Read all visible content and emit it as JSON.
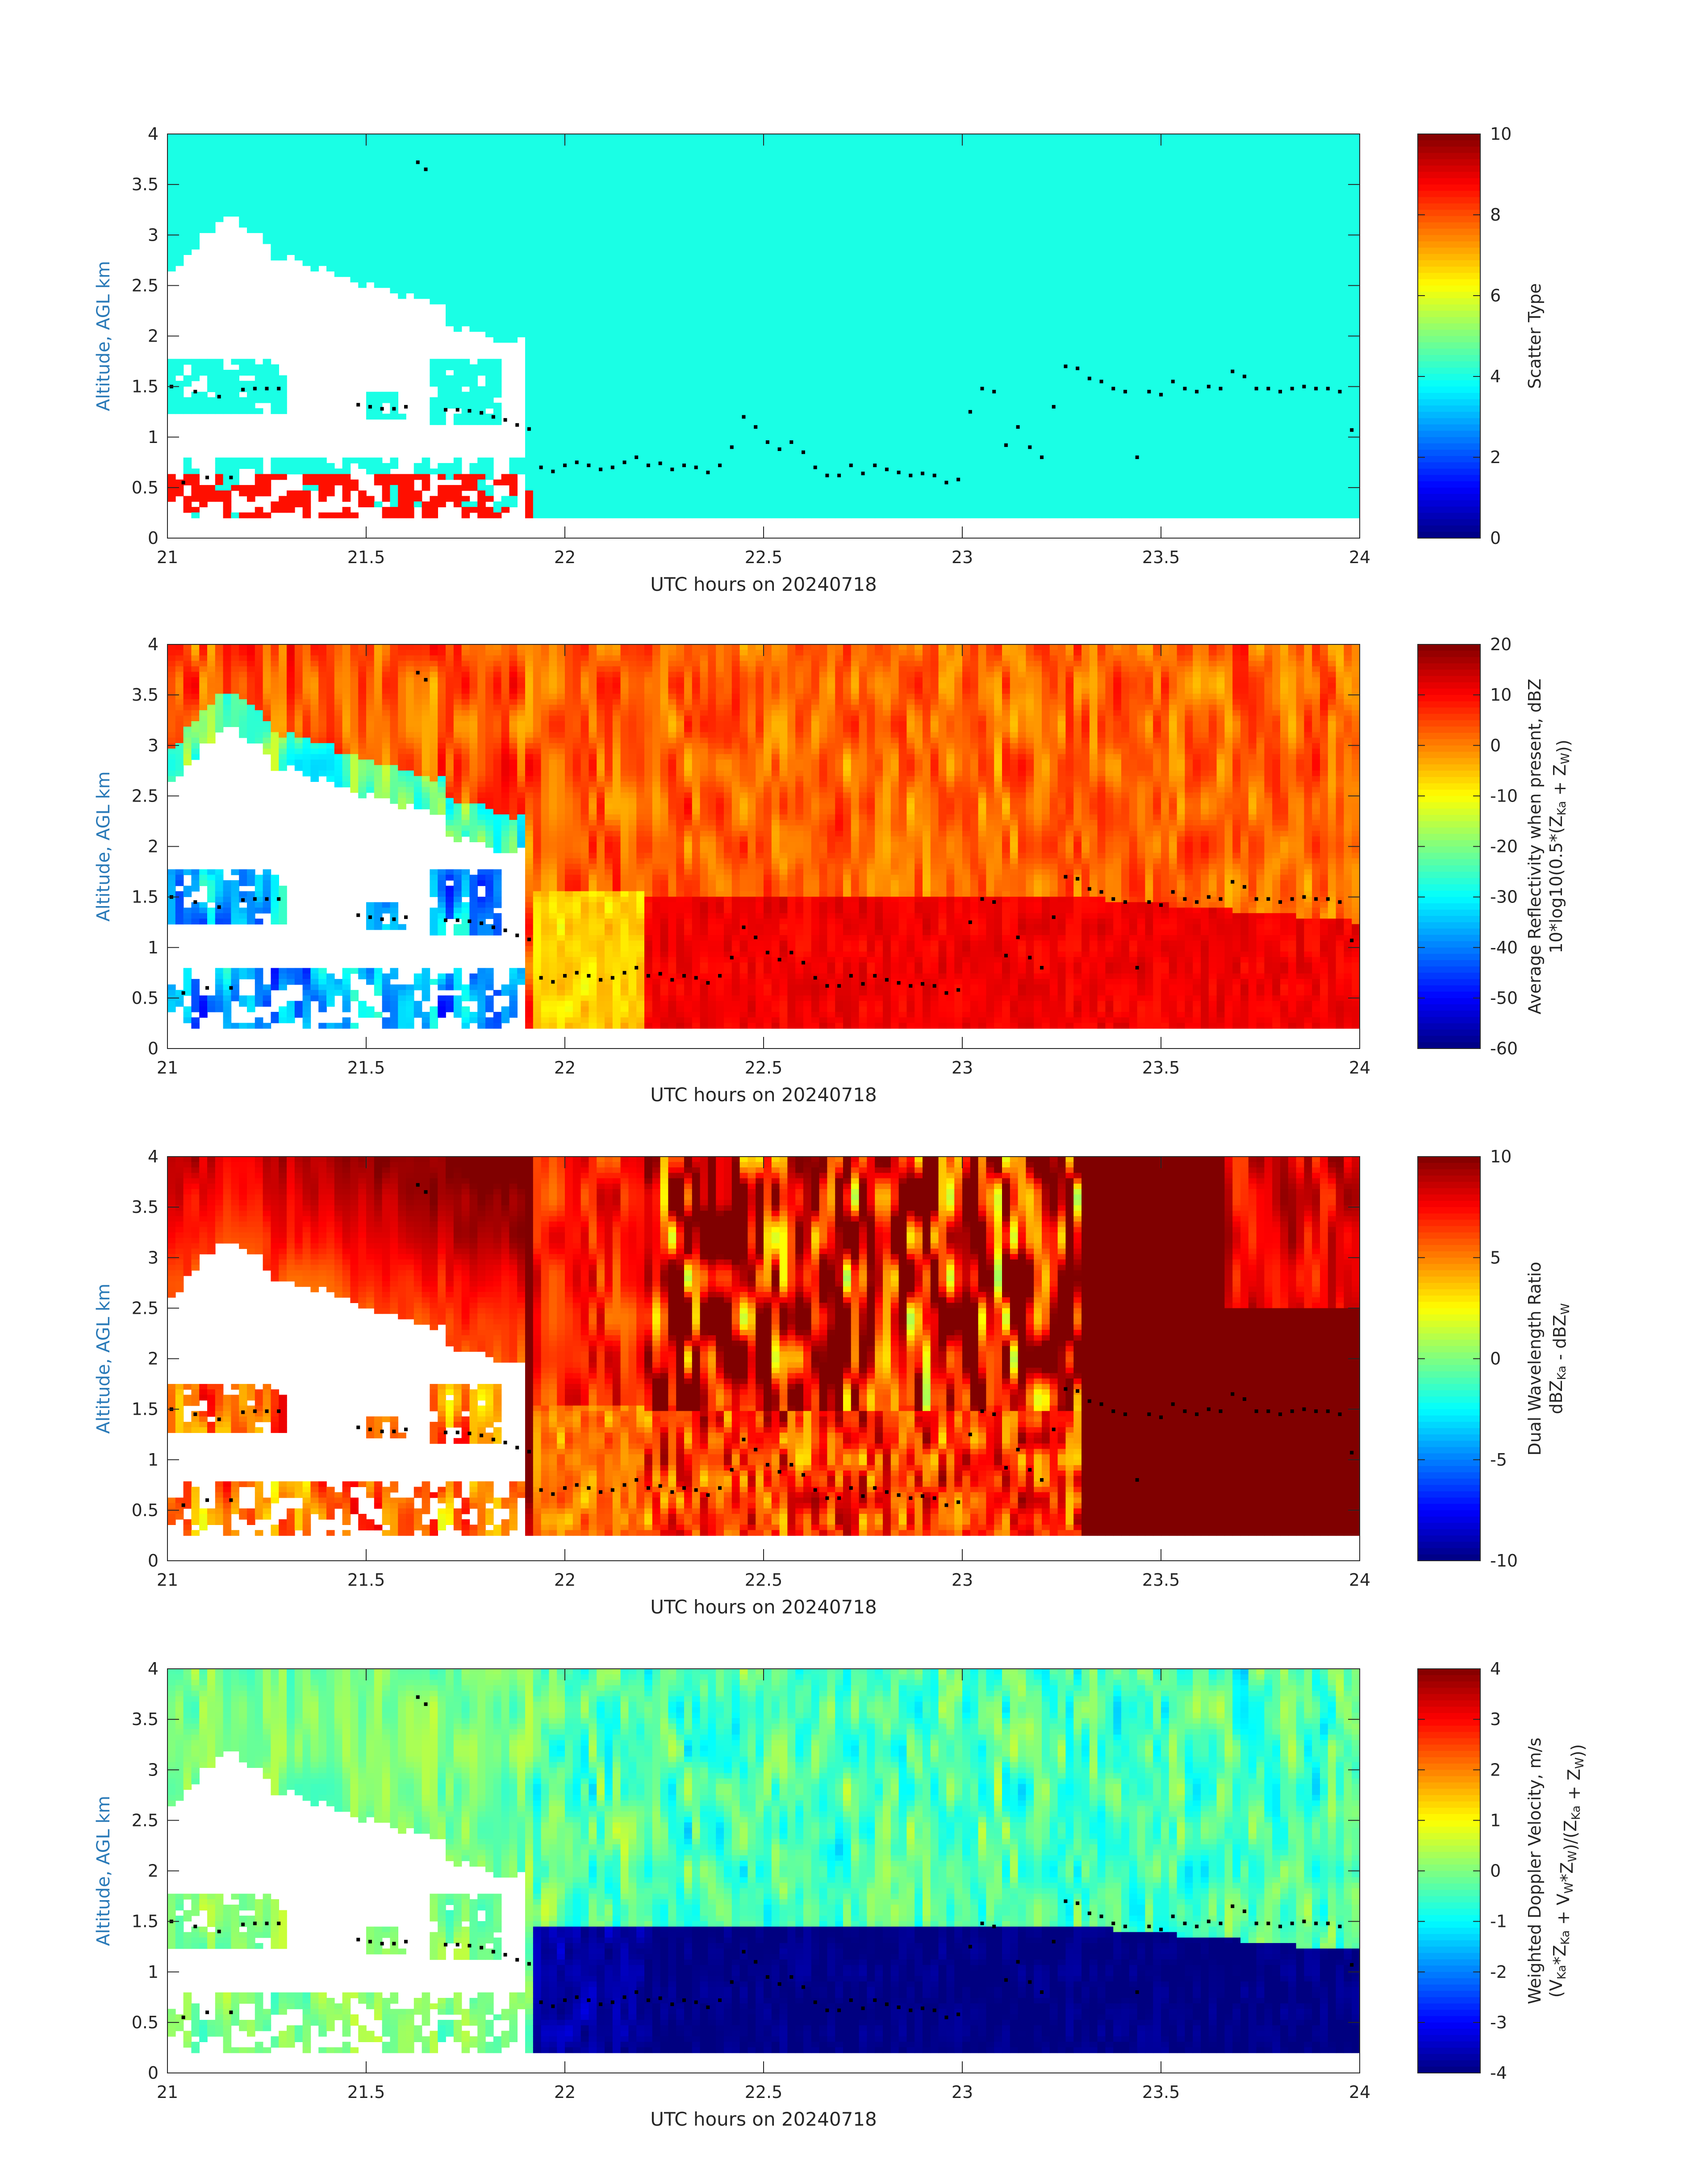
{
  "chart_data": [
    {
      "type": "heatmap",
      "id": "scatter-type",
      "xlabel": "UTC hours on 20240718",
      "ylabel": "Altitude, AGL km",
      "xlim": [
        21,
        24
      ],
      "ylim": [
        0,
        4
      ],
      "xticks": [
        "21",
        "21.5",
        "22",
        "22.5",
        "23",
        "23.5",
        "24"
      ],
      "yticks": [
        "0",
        "0.5",
        "1",
        "1.5",
        "2",
        "2.5",
        "3",
        "3.5",
        "4"
      ],
      "colorbar": {
        "label_lines": [
          {
            "text": "Scatter Type"
          }
        ],
        "range": [
          0,
          10
        ],
        "ticks": [
          "0",
          "2",
          "4",
          "6",
          "8",
          "10"
        ]
      },
      "field": "scatter",
      "colormap": "jet",
      "data_floor_km": 0.2
    },
    {
      "type": "heatmap",
      "id": "avg-reflectivity",
      "xlabel": "UTC hours on 20240718",
      "ylabel": "Altitude, AGL km",
      "xlim": [
        21,
        24
      ],
      "ylim": [
        0,
        4
      ],
      "xticks": [
        "21",
        "21.5",
        "22",
        "22.5",
        "23",
        "23.5",
        "24"
      ],
      "yticks": [
        "0",
        "0.5",
        "1",
        "1.5",
        "2",
        "2.5",
        "3",
        "3.5",
        "4"
      ],
      "colorbar": {
        "label_lines": [
          {
            "text": "Average Reflectivity when present, dBZ"
          },
          {
            "text": "10*log10(0.5*(Z",
            "sub": "Ka",
            "text2": " + Z",
            "sub2": "W",
            "text3": "))"
          }
        ],
        "range": [
          -60,
          20
        ],
        "ticks": [
          "-60",
          "-50",
          "-40",
          "-30",
          "-20",
          "-10",
          "0",
          "10",
          "20"
        ]
      },
      "field": "reflectivity",
      "colormap": "jet",
      "data_floor_km": 0.2
    },
    {
      "type": "heatmap",
      "id": "dual-wavelength-ratio",
      "xlabel": "UTC hours on 20240718",
      "ylabel": "Altitude, AGL km",
      "xlim": [
        21,
        24
      ],
      "ylim": [
        0,
        4
      ],
      "xticks": [
        "21",
        "21.5",
        "22",
        "22.5",
        "23",
        "23.5",
        "24"
      ],
      "yticks": [
        "0",
        "0.5",
        "1",
        "1.5",
        "2",
        "2.5",
        "3",
        "3.5",
        "4"
      ],
      "colorbar": {
        "label_lines": [
          {
            "text": "Dual Wavelength Ratio"
          },
          {
            "text": "dBZ",
            "sub": "Ka",
            "text2": " - dBZ",
            "sub2": "W",
            "text3": ""
          }
        ],
        "range": [
          -10,
          10
        ],
        "ticks": [
          "-10",
          "-5",
          "0",
          "5",
          "10"
        ]
      },
      "field": "dwr",
      "colormap": "jet",
      "data_floor_km": 0.25
    },
    {
      "type": "heatmap",
      "id": "weighted-doppler-velocity",
      "xlabel": "UTC hours on 20240718",
      "ylabel": "Altitude, AGL km",
      "xlim": [
        21,
        24
      ],
      "ylim": [
        0,
        4
      ],
      "xticks": [
        "21",
        "21.5",
        "22",
        "22.5",
        "23",
        "23.5",
        "24"
      ],
      "yticks": [
        "0",
        "0.5",
        "1",
        "1.5",
        "2",
        "2.5",
        "3",
        "3.5",
        "4"
      ],
      "colorbar": {
        "label_lines": [
          {
            "text": "Weighted Doppler Velocity, m/s"
          },
          {
            "text": "(V",
            "sub": "Ka",
            "text2": "*Z",
            "sub2": "Ka",
            "text3": " + V",
            "sub3": "W",
            "text4": "*Z",
            "sub4": "W",
            "text5": ")/(Z",
            "sub5": "Ka",
            "text6": " + Z",
            "sub6": "W",
            "text7": "))"
          }
        ],
        "range": [
          -4,
          4
        ],
        "ticks": [
          "-4",
          "-3",
          "-2",
          "-1",
          "0",
          "1",
          "2",
          "3",
          "4"
        ]
      },
      "field": "velocity",
      "colormap": "jet",
      "data_floor_km": 0.2
    }
  ],
  "cloud_base_markers": {
    "x": [
      21.01,
      21.04,
      21.07,
      21.1,
      21.13,
      21.16,
      21.19,
      21.22,
      21.25,
      21.28,
      21.48,
      21.51,
      21.54,
      21.57,
      21.6,
      21.63,
      21.65,
      21.7,
      21.73,
      21.76,
      21.79,
      21.82,
      21.85,
      21.88,
      21.91,
      21.94,
      21.97,
      22.0,
      22.03,
      22.06,
      22.09,
      22.12,
      22.15,
      22.18,
      22.21,
      22.24,
      22.27,
      22.3,
      22.33,
      22.36,
      22.39,
      22.42,
      22.45,
      22.48,
      22.51,
      22.54,
      22.57,
      22.6,
      22.63,
      22.66,
      22.69,
      22.72,
      22.75,
      22.78,
      22.81,
      22.84,
      22.87,
      22.9,
      22.93,
      22.96,
      22.99,
      23.02,
      23.05,
      23.08,
      23.11,
      23.14,
      23.17,
      23.2,
      23.23,
      23.26,
      23.29,
      23.32,
      23.35,
      23.38,
      23.41,
      23.44,
      23.47,
      23.5,
      23.53,
      23.56,
      23.59,
      23.62,
      23.65,
      23.68,
      23.71,
      23.74,
      23.77,
      23.8,
      23.83,
      23.86,
      23.89,
      23.92,
      23.95,
      23.98
    ],
    "y": [
      1.5,
      0.55,
      1.45,
      0.6,
      1.4,
      0.6,
      1.47,
      1.48,
      1.48,
      1.48,
      1.32,
      1.3,
      1.28,
      1.28,
      1.3,
      3.72,
      3.65,
      1.27,
      1.27,
      1.26,
      1.24,
      1.2,
      1.17,
      1.12,
      1.08,
      0.7,
      0.66,
      0.72,
      0.75,
      0.72,
      0.68,
      0.7,
      0.75,
      0.8,
      0.72,
      0.74,
      0.68,
      0.72,
      0.7,
      0.65,
      0.72,
      0.9,
      1.2,
      1.1,
      0.95,
      0.88,
      0.95,
      0.85,
      0.7,
      0.62,
      0.62,
      0.72,
      0.64,
      0.72,
      0.68,
      0.65,
      0.62,
      0.64,
      0.62,
      0.55,
      0.58,
      1.25,
      1.48,
      1.45,
      0.92,
      1.1,
      0.9,
      0.8,
      1.3,
      1.7,
      1.68,
      1.58,
      1.55,
      1.48,
      1.45,
      0.8,
      1.45,
      1.42,
      1.55,
      1.48,
      1.45,
      1.5,
      1.48,
      1.65,
      1.6,
      1.48,
      1.48,
      1.45,
      1.48,
      1.5,
      1.48,
      1.48,
      1.45,
      1.07
    ]
  }
}
